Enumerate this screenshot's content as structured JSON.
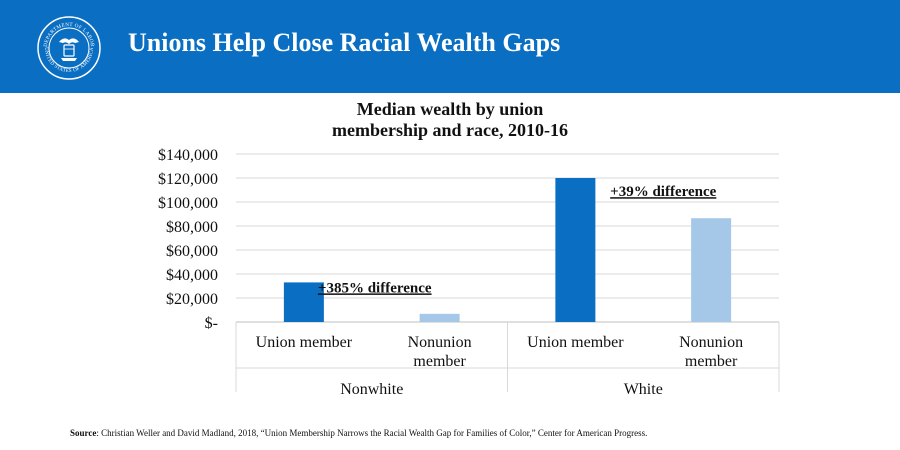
{
  "header": {
    "title": "Unions Help Close Racial Wealth Gaps",
    "seal_top_text": "DEPARTMENT OF LABOR",
    "seal_bottom_text": "UNITED STATES OF AMERICA"
  },
  "colors": {
    "header_bg": "#0a6fc2",
    "union_bar": "#0a6fc2",
    "nonunion_bar": "#a6c8e8"
  },
  "chart_data": {
    "type": "bar",
    "title_line1": "Median wealth by union",
    "title_line2": "membership and race, 2010-16",
    "ylim": [
      0,
      140000
    ],
    "yticks": [
      {
        "value": 0,
        "label": "$-"
      },
      {
        "value": 20000,
        "label": "$20,000"
      },
      {
        "value": 40000,
        "label": "$40,000"
      },
      {
        "value": 60000,
        "label": "$60,000"
      },
      {
        "value": 80000,
        "label": "$80,000"
      },
      {
        "value": 100000,
        "label": "$100,000"
      },
      {
        "value": 120000,
        "label": "$120,000"
      },
      {
        "value": 140000,
        "label": "$140,000"
      }
    ],
    "grid": true,
    "groups": [
      {
        "name": "Nonwhite",
        "annotation": "+385% difference",
        "bars": [
          {
            "label_lines": [
              "Union member"
            ],
            "value": 33000,
            "color": "#0a6fc2"
          },
          {
            "label_lines": [
              "Nonunion",
              "member"
            ],
            "value": 6800,
            "color": "#a6c8e8"
          }
        ]
      },
      {
        "name": "White",
        "annotation": "+39% difference",
        "bars": [
          {
            "label_lines": [
              "Union member"
            ],
            "value": 120000,
            "color": "#0a6fc2"
          },
          {
            "label_lines": [
              "Nonunion",
              "member"
            ],
            "value": 86500,
            "color": "#a6c8e8"
          }
        ]
      }
    ]
  },
  "source": {
    "label": "Source",
    "text": ": Christian Weller and David Madland, 2018, “Union Membership Narrows the Racial Wealth Gap for Families of Color,” Center for American Progress."
  }
}
